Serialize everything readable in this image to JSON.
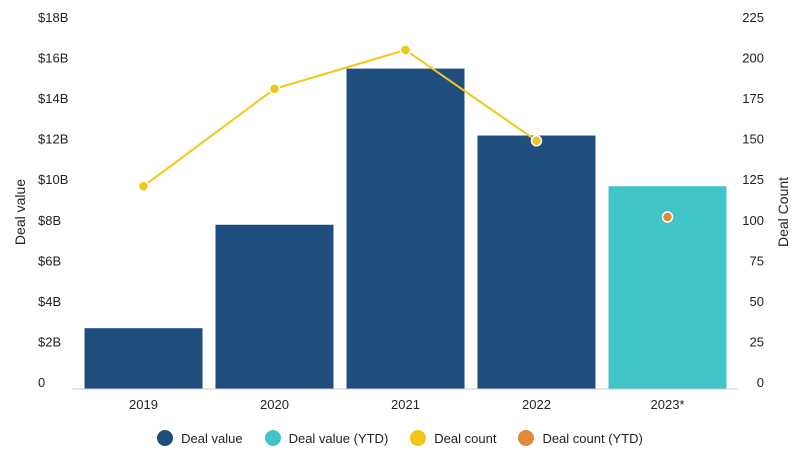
{
  "chart_data": {
    "type": "bar",
    "categories": [
      "2019",
      "2020",
      "2021",
      "2022",
      "2023*"
    ],
    "series": [
      {
        "name": "Deal value",
        "kind": "bar",
        "axis": "left",
        "values": [
          3.0,
          8.1,
          15.8,
          12.5,
          null
        ],
        "color": "#1f4e7e"
      },
      {
        "name": "Deal value (YTD)",
        "kind": "bar",
        "axis": "left",
        "values": [
          null,
          null,
          null,
          null,
          10.0
        ],
        "color": "#40c4c8"
      },
      {
        "name": "Deal count",
        "kind": "line",
        "axis": "right",
        "values": [
          125,
          185,
          209,
          153,
          null
        ],
        "color": "#f2c619"
      },
      {
        "name": "Deal count (YTD)",
        "kind": "point",
        "axis": "right",
        "values": [
          null,
          null,
          null,
          null,
          106
        ],
        "color": "#e08a3a"
      }
    ],
    "ylabel": "Deal value",
    "y2label": "Deal Count",
    "ylim": [
      0,
      18
    ],
    "y2lim": [
      0,
      225
    ],
    "yticks": [
      "0",
      "$2B",
      "$4B",
      "$6B",
      "$8B",
      "$10B",
      "$12B",
      "$14B",
      "$16B",
      "$18B"
    ],
    "y2ticks": [
      "0",
      "25",
      "50",
      "75",
      "100",
      "125",
      "150",
      "175",
      "200",
      "225"
    ],
    "legend_position": "bottom"
  }
}
